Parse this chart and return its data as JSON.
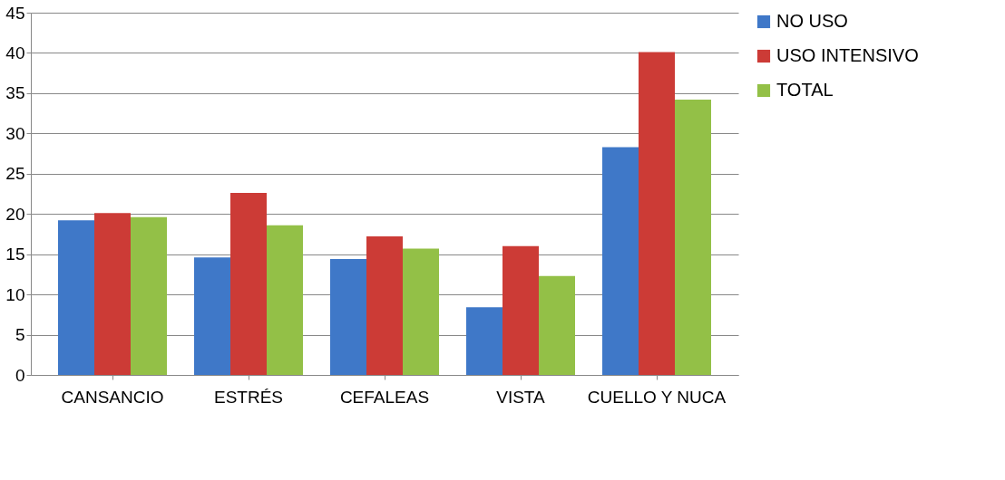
{
  "chart_data": {
    "type": "bar",
    "categories": [
      "CANSANCIO",
      "ESTRÉS",
      "CEFALEAS",
      "VISTA",
      "CUELLO Y NUCA"
    ],
    "series": [
      {
        "name": "NO USO",
        "color": "#3f78c8",
        "values": [
          19.2,
          14.6,
          14.4,
          8.4,
          28.3
        ]
      },
      {
        "name": "USO INTENSIVO",
        "color": "#cc3b36",
        "values": [
          20.1,
          22.6,
          17.2,
          16.0,
          40.1
        ]
      },
      {
        "name": "TOTAL",
        "color": "#93c047",
        "values": [
          19.6,
          18.6,
          15.7,
          12.3,
          34.2
        ]
      }
    ],
    "ylim": [
      0,
      45
    ],
    "yticks": [
      0,
      5,
      10,
      15,
      20,
      25,
      30,
      35,
      40,
      45
    ],
    "grid": "y",
    "legend": "right"
  }
}
